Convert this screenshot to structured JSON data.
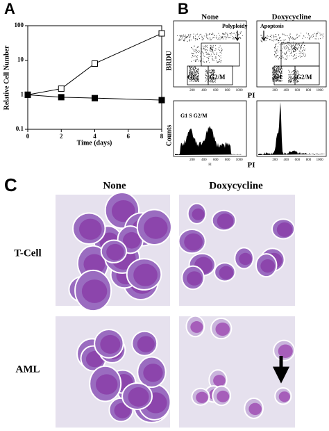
{
  "chart_data": {
    "type": "line",
    "label": "A",
    "ylabel": "Relative Cell Number",
    "xlabel": "Time (days)",
    "x": [
      0,
      2,
      4,
      8
    ],
    "series": [
      {
        "name": null,
        "color": "#000000",
        "marker": "open-square",
        "values": [
          1,
          1.5,
          8,
          60
        ]
      },
      {
        "name": null,
        "color": "#000000",
        "marker": "filled-square",
        "values": [
          1,
          0.85,
          0.8,
          0.7
        ]
      }
    ],
    "xlim": [
      0,
      8
    ],
    "xticks": [
      0,
      2,
      4,
      6,
      8
    ],
    "ylim": [
      0.1,
      100
    ],
    "yticks": [
      0.1,
      1,
      10,
      100
    ],
    "log_y": true,
    "grid": false
  },
  "flow": {
    "label": "B",
    "ticks": [
      200,
      400,
      600,
      800,
      1000
    ],
    "plots": [
      {
        "title": "None",
        "y_label": "BRDU",
        "annotation": "Polyploidy",
        "gates": [
          "S",
          "G1",
          "G2/M"
        ]
      },
      {
        "title": "Doxycycline",
        "x_label": "PI",
        "annotation": "Apoptosis",
        "gates": [
          "S",
          "G1",
          "G2/M"
        ]
      },
      {
        "y_label": "Counts",
        "gates_label": "G1 S G2/M",
        "axis_small": "FI"
      },
      {
        "x_label": "PI"
      }
    ]
  },
  "micrographs": {
    "label": "C",
    "columns": [
      "None",
      "Doxycycline"
    ],
    "rows": [
      "T-Cell",
      "AML"
    ]
  }
}
